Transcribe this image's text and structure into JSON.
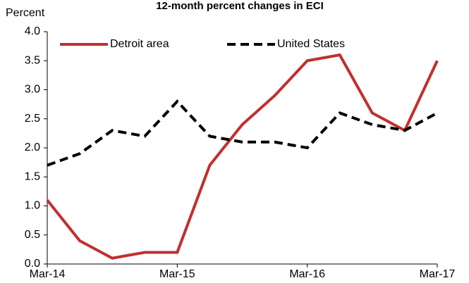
{
  "chart_data": {
    "type": "line",
    "title": "12-month percent changes in ECI",
    "y_label": "Percent",
    "categories": [
      "Mar-14",
      null,
      null,
      null,
      "Mar-15",
      null,
      null,
      null,
      "Mar-16",
      null,
      null,
      null,
      "Mar-17"
    ],
    "series": [
      {
        "name": "Detroit area",
        "color": "#c0302f",
        "dash": "solid",
        "values": [
          1.1,
          0.4,
          0.1,
          0.2,
          0.2,
          1.7,
          2.4,
          2.9,
          3.5,
          3.6,
          2.6,
          2.3,
          3.5
        ]
      },
      {
        "name": "United States",
        "color": "#000000",
        "dash": "dashed",
        "values": [
          1.7,
          1.9,
          2.3,
          2.2,
          2.8,
          2.2,
          2.1,
          2.1,
          2.0,
          2.6,
          2.4,
          2.3,
          2.6
        ]
      }
    ],
    "ylim": [
      0,
      4
    ],
    "yticks": [
      {
        "value": 0,
        "label": "0.0"
      },
      {
        "value": 0.5,
        "label": "0.5"
      },
      {
        "value": 1,
        "label": "1.0"
      },
      {
        "value": 1.5,
        "label": "1.5"
      },
      {
        "value": 2,
        "label": "2.0"
      },
      {
        "value": 2.5,
        "label": "2.5"
      },
      {
        "value": 3,
        "label": "3.0"
      },
      {
        "value": 3.5,
        "label": "3.5"
      },
      {
        "value": 4,
        "label": "4.0"
      }
    ],
    "grid": false,
    "legend": "top-left"
  }
}
